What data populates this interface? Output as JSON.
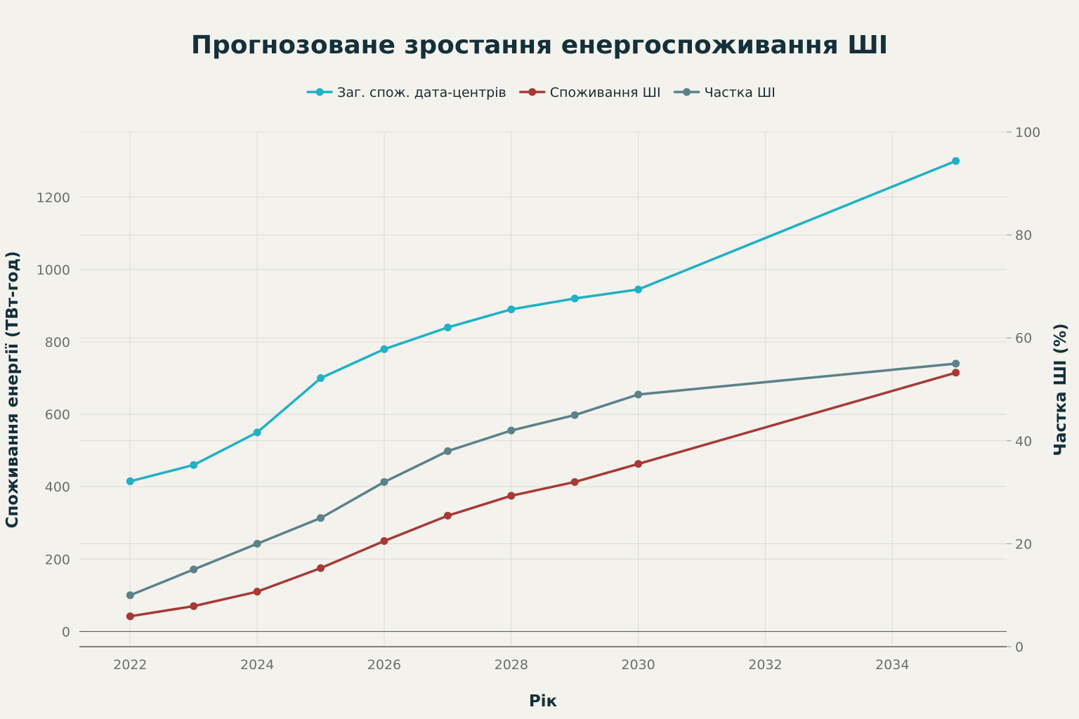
{
  "chart_data": {
    "type": "line",
    "title": "Прогнозоване зростання енергоспоживання ШІ",
    "xlabel": "Рік",
    "ylabel": "Споживання енергії (ТВт-год)",
    "y2label": "Частка ШІ (%)",
    "x": [
      2022,
      2023,
      2024,
      2025,
      2026,
      2027,
      2028,
      2029,
      2030,
      2035
    ],
    "xlim": [
      2021.2,
      2035.8
    ],
    "ylim": [
      -42,
      1380
    ],
    "y2lim": [
      0,
      100
    ],
    "xticks": [
      2022,
      2024,
      2026,
      2028,
      2030,
      2032,
      2034
    ],
    "yticks": [
      0,
      200,
      400,
      600,
      800,
      1000,
      1200
    ],
    "y2ticks": [
      0,
      20,
      40,
      60,
      80,
      100
    ],
    "grid": true,
    "legend_position": "top-center",
    "series": [
      {
        "name": "Заг. спож. дата-центрів",
        "axis": "left",
        "color": "#1fb1c4",
        "values": [
          415,
          460,
          550,
          700,
          780,
          840,
          890,
          920,
          945,
          1300
        ]
      },
      {
        "name": "Споживання ШІ",
        "axis": "left",
        "color": "#a63a36",
        "values": [
          42,
          70,
          110,
          175,
          250,
          320,
          375,
          413,
          463,
          715
        ]
      },
      {
        "name": "Частка ШІ",
        "axis": "right",
        "color": "#5b8189",
        "values": [
          10,
          15,
          20,
          25,
          32,
          38,
          42,
          45,
          49,
          55
        ]
      }
    ]
  }
}
